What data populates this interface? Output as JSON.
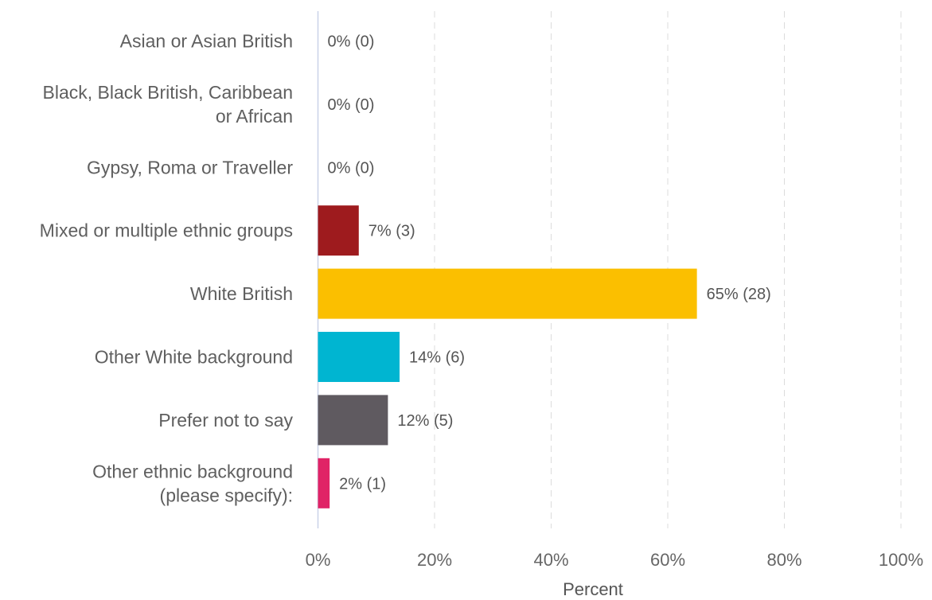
{
  "chart_data": {
    "type": "bar",
    "orientation": "horizontal",
    "categories": [
      [
        "Asian or Asian British"
      ],
      [
        "Black, Black British, Caribbean",
        "or African"
      ],
      [
        "Gypsy, Roma or Traveller"
      ],
      [
        "Mixed or multiple ethnic groups"
      ],
      [
        "White British"
      ],
      [
        "Other White background"
      ],
      [
        "Prefer not to say"
      ],
      [
        "Other ethnic background",
        "(please specify):"
      ]
    ],
    "values": [
      0,
      0,
      0,
      7,
      65,
      14,
      12,
      2
    ],
    "counts": [
      0,
      0,
      0,
      3,
      28,
      6,
      5,
      1
    ],
    "data_labels": [
      "0% (0)",
      "0% (0)",
      "0% (0)",
      "7% (3)",
      "65% (28)",
      "14% (6)",
      "12% (5)",
      "2% (1)"
    ],
    "colors": [
      "#9e1b1e",
      "#9e1b1e",
      "#9e1b1e",
      "#9e1b1e",
      "#fbbf00",
      "#00b5d1",
      "#5f5a60",
      "#e02366"
    ],
    "xlabel": "Percent",
    "ylabel": "",
    "xlim": [
      0,
      100
    ],
    "x_ticks": [
      0,
      20,
      40,
      60,
      80,
      100
    ],
    "x_tick_labels": [
      "0%",
      "20%",
      "40%",
      "60%",
      "80%",
      "100%"
    ],
    "grid": "vertical dashed",
    "legend": "none"
  }
}
